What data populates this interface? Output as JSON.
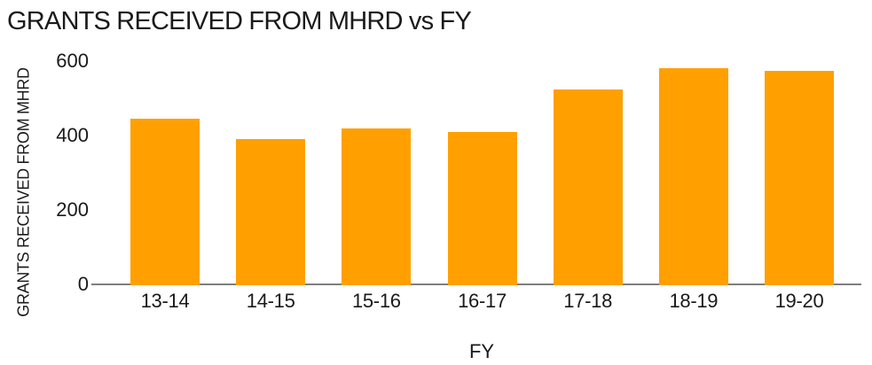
{
  "chart_data": {
    "type": "bar",
    "title": "GRANTS RECEIVED FROM MHRD vs FY",
    "xlabel": "FY",
    "ylabel": "GRANTS RECEIVED FROM MHRD",
    "categories": [
      "13-14",
      "14-15",
      "15-16",
      "16-17",
      "17-18",
      "18-19",
      "19-20"
    ],
    "values": [
      445,
      390,
      420,
      410,
      525,
      580,
      575
    ],
    "yticks": [
      0,
      200,
      400,
      600
    ],
    "ylim": [
      0,
      600
    ],
    "grid": false,
    "legend": false,
    "colors": {
      "bar": "#FFA000",
      "axis_line": "#7F7F7F",
      "text": "#1A1A1A",
      "background": "#FFFFFF"
    }
  }
}
